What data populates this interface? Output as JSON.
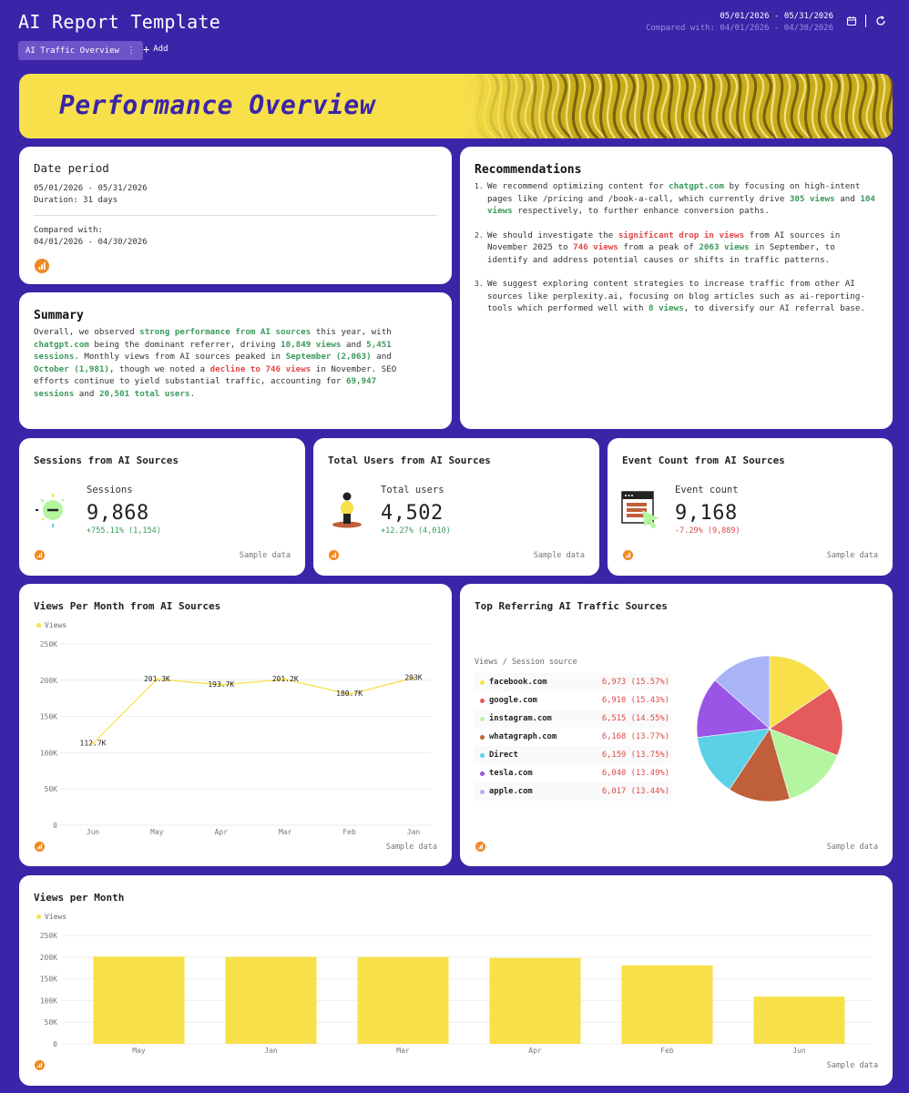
{
  "header": {
    "title": "AI Report Template",
    "tab_label": "AI Traffic Overview",
    "tab_menu": "⋮",
    "add_label": "Add",
    "date_range": "05/01/2026 - 05/31/2026",
    "compare_range": "Compared with: 04/01/2026 - 04/30/2026",
    "icons": [
      "calendar-icon",
      "refresh-icon"
    ]
  },
  "banner": {
    "title": "Performance Overview"
  },
  "date_period": {
    "title": "Date period",
    "range": "05/01/2026 - 05/31/2026",
    "duration": "Duration: 31 days",
    "compared_label": "Compared with:",
    "compared_range": "04/01/2026 - 04/30/2026"
  },
  "summary": {
    "title": "Summary",
    "segments": [
      {
        "t": "Overall, we observed ",
        "c": ""
      },
      {
        "t": "strong performance from AI sources",
        "c": "g"
      },
      {
        "t": " this year, with ",
        "c": ""
      },
      {
        "t": "chatgpt.com",
        "c": "g"
      },
      {
        "t": " being the dominant referrer, driving ",
        "c": ""
      },
      {
        "t": "10,849 views",
        "c": "g"
      },
      {
        "t": " and ",
        "c": ""
      },
      {
        "t": "5,451 sessions",
        "c": "g"
      },
      {
        "t": ". Monthly views from AI sources peaked in ",
        "c": ""
      },
      {
        "t": "September (2,063)",
        "c": "g"
      },
      {
        "t": " and ",
        "c": ""
      },
      {
        "t": "October (1,981)",
        "c": "g"
      },
      {
        "t": ", though we noted a ",
        "c": ""
      },
      {
        "t": "decline to 746 views",
        "c": "r"
      },
      {
        "t": " in November. SEO efforts continue to yield substantial traffic, accounting for ",
        "c": ""
      },
      {
        "t": "69,947 sessions",
        "c": "g"
      },
      {
        "t": " and ",
        "c": ""
      },
      {
        "t": "20,501 total users",
        "c": "g"
      },
      {
        "t": ".",
        "c": ""
      }
    ]
  },
  "recommendations": {
    "title": "Recommendations",
    "items": [
      [
        {
          "t": "We recommend optimizing content for ",
          "c": ""
        },
        {
          "t": "chatgpt.com",
          "c": "g"
        },
        {
          "t": " by focusing on high-intent pages like /pricing and /book-a-call, which currently drive ",
          "c": ""
        },
        {
          "t": "305 views",
          "c": "g"
        },
        {
          "t": " and ",
          "c": ""
        },
        {
          "t": "104 views",
          "c": "g"
        },
        {
          "t": " respectively, to further enhance conversion paths.",
          "c": ""
        }
      ],
      [
        {
          "t": "We should investigate the ",
          "c": ""
        },
        {
          "t": "significant drop in views",
          "c": "r"
        },
        {
          "t": " from AI sources in November 2025 to ",
          "c": ""
        },
        {
          "t": "746 views",
          "c": "r"
        },
        {
          "t": " from a peak of ",
          "c": ""
        },
        {
          "t": "2063 views",
          "c": "g"
        },
        {
          "t": " in September, to identify and address potential causes or shifts in traffic patterns.",
          "c": ""
        }
      ],
      [
        {
          "t": "We suggest exploring content strategies to increase traffic from other AI sources like perplexity.ai, focusing on blog articles such as ai-reporting-tools which performed well with ",
          "c": ""
        },
        {
          "t": "8 views",
          "c": "g"
        },
        {
          "t": ", to diversify our AI referral base.",
          "c": ""
        }
      ]
    ]
  },
  "kpis": [
    {
      "title": "Sessions from AI Sources",
      "label": "Sessions",
      "value": "9,868",
      "delta": "+755.11% (1,154)",
      "delta_color": "#3a9a5b",
      "icon": "sun-icon",
      "sample": "Sample data"
    },
    {
      "title": "Total Users from AI Sources",
      "label": "Total users",
      "value": "4,502",
      "delta": "+12.27% (4,010)",
      "delta_color": "#3a9a5b",
      "icon": "person-icon",
      "sample": "Sample data"
    },
    {
      "title": "Event Count from AI Sources",
      "label": "Event count",
      "value": "9,168",
      "delta": "-7.29% (9,889)",
      "delta_color": "#e04747",
      "icon": "browser-cursor-icon",
      "sample": "Sample data"
    }
  ],
  "line_card": {
    "title": "Views Per Month from AI Sources",
    "legend": "Views",
    "sample": "Sample data"
  },
  "pie_card": {
    "title": "Top Referring AI Traffic Sources",
    "table_header": "Views / Session source",
    "sample": "Sample data"
  },
  "bar_card": {
    "title": "Views per Month",
    "legend": "Views",
    "sample": "Sample data"
  },
  "chart_data": [
    {
      "type": "line",
      "title": "Views Per Month from AI Sources",
      "categories": [
        "Jun",
        "May",
        "Apr",
        "Mar",
        "Feb",
        "Jan"
      ],
      "series": [
        {
          "name": "Views",
          "values": [
            112700,
            201300,
            193700,
            201200,
            180700,
            203000
          ],
          "labels": [
            "112.7K",
            "201.3K",
            "193.7K",
            "201.2K",
            "180.7K",
            "203K"
          ]
        }
      ],
      "ylim": [
        0,
        250000
      ],
      "yticks": [
        "0",
        "50K",
        "100K",
        "150K",
        "200K",
        "250K"
      ],
      "color": "#f7e04a",
      "grid": true,
      "legend": "top-left"
    },
    {
      "type": "pie",
      "title": "Top Referring AI Traffic Sources",
      "slices": [
        {
          "label": "facebook.com",
          "value": 6973,
          "display": "6,973 (15.57%)",
          "color": "#f7e04a"
        },
        {
          "label": "google.com",
          "value": 6910,
          "display": "6,910 (15.43%)",
          "color": "#e35b5b"
        },
        {
          "label": "instagram.com",
          "value": 6515,
          "display": "6,515 (14.55%)",
          "color": "#b4f5a0"
        },
        {
          "label": "whatagraph.com",
          "value": 6168,
          "display": "6,168 (13.77%)",
          "color": "#c0603a"
        },
        {
          "label": "Direct",
          "value": 6159,
          "display": "6,159 (13.75%)",
          "color": "#5cd0e6"
        },
        {
          "label": "tesla.com",
          "value": 6040,
          "display": "6,040 (13.49%)",
          "color": "#9b55e6"
        },
        {
          "label": "apple.com",
          "value": 6017,
          "display": "6,017 (13.44%)",
          "color": "#a8b4f7"
        }
      ]
    },
    {
      "type": "bar",
      "title": "Views per Month",
      "categories": [
        "May",
        "Jan",
        "Mar",
        "Apr",
        "Feb",
        "Jun"
      ],
      "series": [
        {
          "name": "Views",
          "values": [
            201300,
            200500,
            200200,
            198000,
            181000,
            109000
          ]
        }
      ],
      "ylim": [
        0,
        250000
      ],
      "yticks": [
        "0",
        "50K",
        "100K",
        "150K",
        "200K",
        "250K"
      ],
      "color": "#f7e04a",
      "grid": true,
      "legend": "top-left"
    }
  ]
}
